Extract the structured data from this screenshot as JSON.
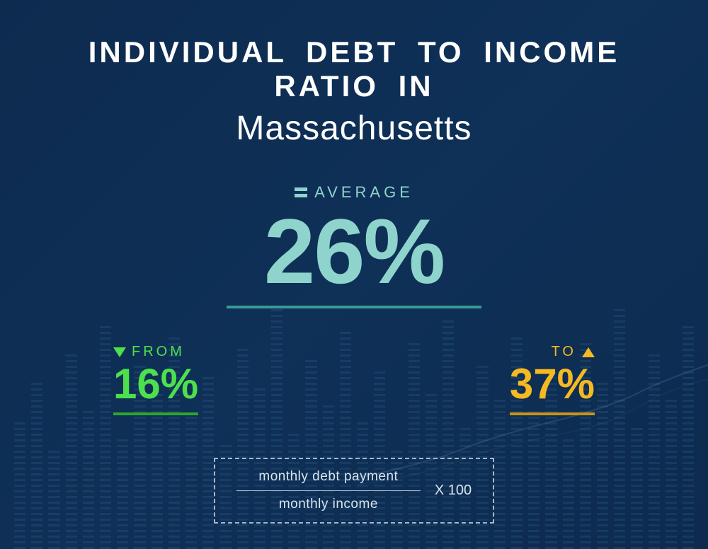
{
  "title": {
    "line1": "INDIVIDUAL  DEBT  TO  INCOME RATIO  IN",
    "line2": "Massachusetts"
  },
  "average": {
    "label": "AVERAGE",
    "value": "26%",
    "color": "#8fd4cc",
    "underline_color": "#3a9b92"
  },
  "range": {
    "from": {
      "label": "FROM",
      "value": "16%",
      "color": "#4de04d",
      "underline_color": "#2ba82b"
    },
    "to": {
      "label": "TO",
      "value": "37%",
      "color": "#f5b921",
      "underline_color": "#c99318"
    }
  },
  "formula": {
    "numerator": "monthly debt payment",
    "denominator": "monthly income",
    "multiplier": "X 100",
    "border_color": "#a8b8c8",
    "text_color": "#d8e4ec"
  },
  "background": {
    "gradient_start": "#0d2b4f",
    "gradient_mid": "#0f3057",
    "gradient_end": "#0d2b4f",
    "bar_heights_pct": [
      45,
      60,
      35,
      70,
      50,
      80,
      40,
      65,
      55,
      75,
      48,
      62,
      38,
      72,
      58,
      85,
      42,
      68,
      52,
      78,
      46,
      64,
      36,
      74,
      56,
      82,
      44,
      66,
      54,
      76,
      49,
      63,
      39,
      73,
      59,
      86,
      43,
      69,
      53,
      79
    ],
    "pattern_color": "#4a90c2",
    "pattern_opacity": 0.15,
    "trend_line_color": "#6fa8d4",
    "trend_line_opacity": 0.2
  },
  "typography": {
    "title_line1_fontsize": 42,
    "title_line2_fontsize": 48,
    "average_value_fontsize": 130,
    "range_value_fontsize": 60,
    "formula_fontsize": 19
  }
}
